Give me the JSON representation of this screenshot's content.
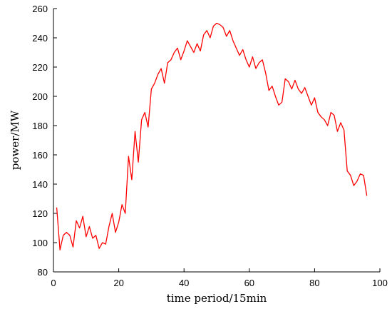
{
  "chart_data": {
    "type": "line",
    "title": "",
    "xlabel": "time period/15min",
    "ylabel": "power/MW",
    "xlim": [
      0,
      100
    ],
    "ylim": [
      80,
      260
    ],
    "xticks": [
      0,
      20,
      40,
      60,
      80,
      100
    ],
    "yticks": [
      80,
      100,
      120,
      140,
      160,
      180,
      200,
      220,
      240,
      260
    ],
    "grid": false,
    "legend": "none",
    "series": [
      {
        "color": "#ff0000",
        "x": [
          1,
          2,
          3,
          4,
          5,
          6,
          7,
          8,
          9,
          10,
          11,
          12,
          13,
          14,
          15,
          16,
          17,
          18,
          19,
          20,
          21,
          22,
          23,
          24,
          25,
          26,
          27,
          28,
          29,
          30,
          31,
          32,
          33,
          34,
          35,
          36,
          37,
          38,
          39,
          40,
          41,
          42,
          43,
          44,
          45,
          46,
          47,
          48,
          49,
          50,
          51,
          52,
          53,
          54,
          55,
          56,
          57,
          58,
          59,
          60,
          61,
          62,
          63,
          64,
          65,
          66,
          67,
          68,
          69,
          70,
          71,
          72,
          73,
          74,
          75,
          76,
          77,
          78,
          79,
          80,
          81,
          82,
          83,
          84,
          85,
          86,
          87,
          88,
          89,
          90,
          91,
          92,
          93,
          94,
          95,
          96
        ],
        "y": [
          124,
          95,
          105,
          107,
          105,
          97,
          115,
          110,
          118,
          104,
          111,
          103,
          105,
          96,
          100,
          99,
          111,
          120,
          107,
          114,
          126,
          120,
          159,
          143,
          176,
          155,
          184,
          189,
          179,
          205,
          209,
          215,
          219,
          209,
          223,
          225,
          230,
          233,
          225,
          231,
          238,
          234,
          230,
          236,
          231,
          242,
          245,
          240,
          248,
          250,
          249,
          247,
          241,
          245,
          238,
          233,
          228,
          232,
          225,
          220,
          227,
          219,
          223,
          225,
          216,
          204,
          207,
          200,
          194,
          196,
          212,
          210,
          205,
          211,
          205,
          202,
          206,
          200,
          194,
          199,
          189,
          186,
          184,
          180,
          189,
          187,
          176,
          182,
          177,
          149,
          146,
          139,
          142,
          147,
          146,
          132
        ]
      }
    ]
  }
}
